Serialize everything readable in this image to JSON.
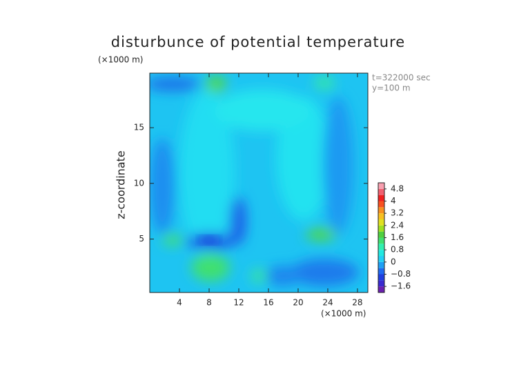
{
  "chart_data": {
    "type": "contour",
    "title": "disturbunce of potential temperature",
    "y_unit": "(×1000 m)",
    "x_unit": "(×1000 m)",
    "y_label": "z-coordinate",
    "annotations": [
      "t=322000 sec",
      "y=100 m"
    ],
    "xlim": [
      0,
      29.4
    ],
    "xticks": [
      4,
      8,
      12,
      16,
      20,
      24,
      28
    ],
    "ylim": [
      0.2,
      19.9
    ],
    "yticks": [
      5,
      10,
      15
    ],
    "colorbar": {
      "lim": [
        -2.0,
        5.2
      ],
      "colors": [
        "#6a1fb0",
        "#3a2ad0",
        "#1f3fe0",
        "#1f6af0",
        "#1ea0f5",
        "#22d0f5",
        "#22e8e0",
        "#30f0b0",
        "#40e070",
        "#50d040",
        "#a0e020",
        "#e0e020",
        "#f8c020",
        "#f89020",
        "#f85020",
        "#f02020",
        "#f06070",
        "#f8a0b0"
      ],
      "ticks": [
        4.8,
        4,
        3.2,
        2.4,
        1.6,
        0.8,
        0,
        {
          "value": -0.8,
          "label": "−0.8"
        },
        {
          "value": -1.6,
          "label": "−1.6"
        }
      ]
    }
  }
}
